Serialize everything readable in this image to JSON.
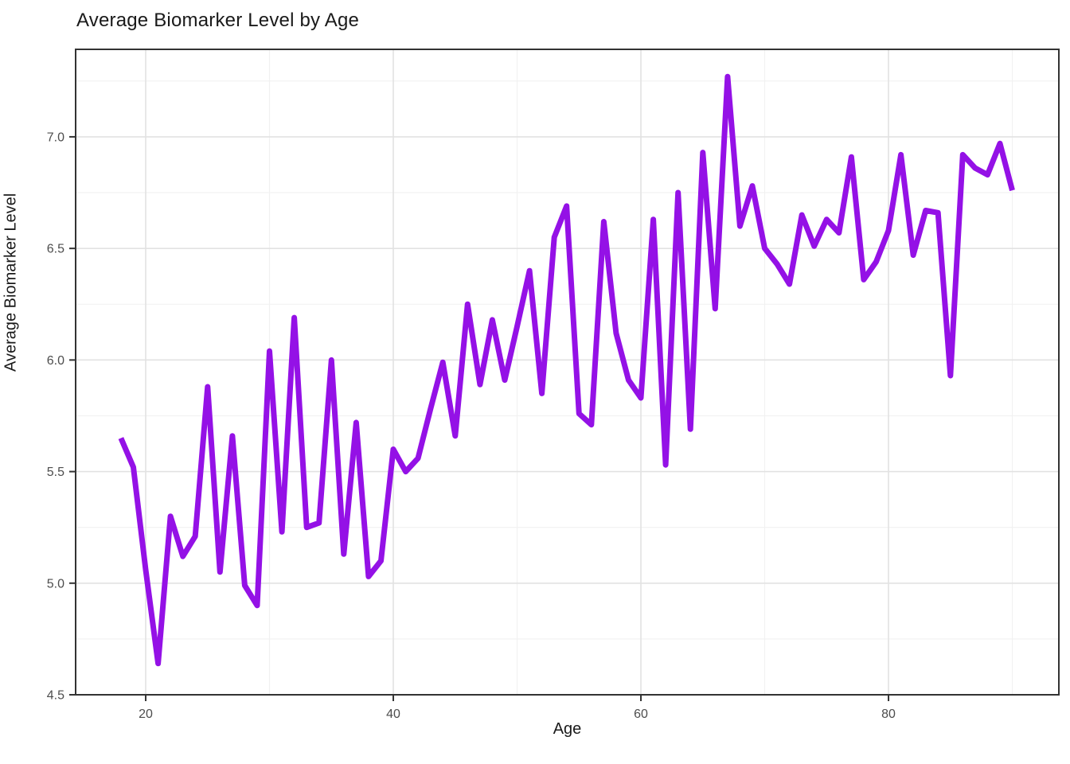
{
  "chart": {
    "title": "Average Biomarker Level by Age",
    "x_axis_title": "Age",
    "y_axis_title": "Average Biomarker Level",
    "line_color": "#9411E6",
    "panel_border_color": "#333333",
    "major_grid_color": "#e2e2e2",
    "minor_grid_color": "#f1f1f1",
    "tick_color": "#333333",
    "tick_label_color": "#4d4d4d",
    "background_color": "#ffffff"
  },
  "chart_data": {
    "type": "line",
    "title": "Average Biomarker Level by Age",
    "xlabel": "Age",
    "ylabel": "Average Biomarker Level",
    "x": [
      18,
      19,
      20,
      21,
      22,
      23,
      24,
      25,
      26,
      27,
      28,
      29,
      30,
      31,
      32,
      33,
      34,
      35,
      36,
      37,
      38,
      39,
      40,
      41,
      42,
      43,
      44,
      45,
      46,
      47,
      48,
      49,
      50,
      51,
      52,
      53,
      54,
      55,
      56,
      57,
      58,
      59,
      60,
      61,
      62,
      63,
      64,
      65,
      66,
      67,
      68,
      69,
      70,
      71,
      72,
      73,
      74,
      75,
      76,
      77,
      78,
      79,
      80,
      81,
      82,
      83,
      84,
      85,
      86,
      87,
      88,
      89,
      90
    ],
    "y": [
      5.65,
      5.52,
      5.06,
      4.64,
      5.3,
      5.12,
      5.21,
      5.88,
      5.05,
      5.66,
      4.99,
      4.9,
      6.04,
      5.23,
      6.19,
      5.25,
      5.27,
      6.0,
      5.13,
      5.72,
      5.03,
      5.1,
      5.6,
      5.5,
      5.56,
      5.78,
      5.99,
      5.66,
      6.25,
      5.89,
      6.18,
      5.91,
      6.15,
      6.4,
      5.85,
      6.55,
      6.69,
      5.76,
      5.71,
      6.62,
      6.12,
      5.91,
      5.83,
      6.63,
      5.53,
      6.75,
      5.69,
      6.93,
      6.23,
      7.27,
      6.6,
      6.78,
      6.5,
      6.43,
      6.34,
      6.65,
      6.51,
      6.63,
      6.57,
      6.91,
      6.36,
      6.44,
      6.58,
      6.92,
      6.47,
      6.67,
      6.66,
      5.93,
      6.92,
      6.86,
      6.83,
      6.97,
      6.76
    ],
    "xlim": [
      14.34,
      93.76
    ],
    "ylim": [
      4.5,
      7.392
    ],
    "x_major_ticks": [
      20,
      40,
      60,
      80
    ],
    "x_tick_labels": [
      "20",
      "40",
      "60",
      "80"
    ],
    "x_minor_ticks": [
      30,
      50,
      70,
      90
    ],
    "y_major_ticks": [
      4.5,
      5.0,
      5.5,
      6.0,
      6.5,
      7.0
    ],
    "y_tick_labels": [
      "4.5",
      "5.0",
      "5.5",
      "6.0",
      "6.5",
      "7.0"
    ],
    "y_minor_ticks": [
      4.75,
      5.25,
      5.75,
      6.25,
      6.75,
      7.25
    ],
    "grid": true,
    "legend": "none"
  }
}
